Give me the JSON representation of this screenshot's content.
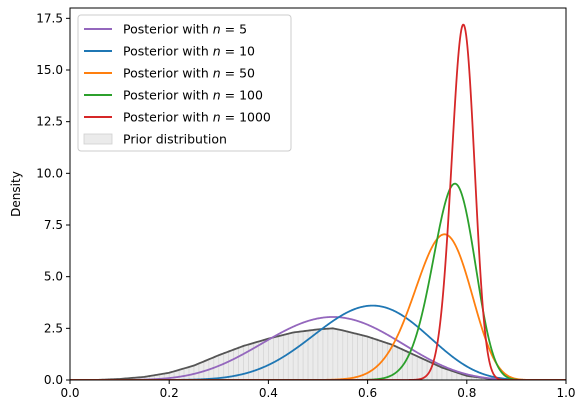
{
  "chart_data": {
    "type": "line",
    "title": "",
    "xlabel": "",
    "ylabel": "Density",
    "xlim": [
      0.0,
      1.0
    ],
    "ylim": [
      0.0,
      18.0
    ],
    "xticks": [
      "0.0",
      "0.2",
      "0.4",
      "0.6",
      "0.8",
      "1.0"
    ],
    "yticks": [
      "0.0",
      "2.5",
      "5.0",
      "7.5",
      "10.0",
      "12.5",
      "15.0",
      "17.5"
    ],
    "grid": false,
    "legend_position": "top-left",
    "series": [
      {
        "name": "Posterior with n = 5",
        "label_text": "Posterior with ",
        "label_n": "n",
        "label_eq": " = 5",
        "color": "#9467bd",
        "peak_x": 0.53,
        "peak_y": 3.05
      },
      {
        "name": "Posterior with n = 10",
        "label_text": "Posterior with ",
        "label_n": "n",
        "label_eq": " = 10",
        "color": "#1f77b4",
        "peak_x": 0.61,
        "peak_y": 3.6
      },
      {
        "name": "Posterior with n = 50",
        "label_text": "Posterior with ",
        "label_n": "n",
        "label_eq": " = 50",
        "color": "#ff7f0e",
        "peak_x": 0.755,
        "peak_y": 7.05
      },
      {
        "name": "Posterior with n = 100",
        "label_text": "Posterior with ",
        "label_n": "n",
        "label_eq": " = 100",
        "color": "#2ca02c",
        "peak_x": 0.776,
        "peak_y": 9.5
      },
      {
        "name": "Posterior with n = 1000",
        "label_text": "Posterior with ",
        "label_n": "n",
        "label_eq": " = 1000",
        "color": "#d62728",
        "peak_x": 0.793,
        "peak_y": 17.2
      }
    ],
    "prior": {
      "name": "Prior distribution",
      "fill_color": "#ebebeb",
      "edge_color": "#555555",
      "bin_width": 0.01,
      "x": [
        0.0,
        0.05,
        0.1,
        0.15,
        0.2,
        0.25,
        0.3,
        0.35,
        0.4,
        0.45,
        0.5,
        0.53,
        0.55,
        0.6,
        0.65,
        0.7,
        0.75,
        0.8,
        0.85,
        0.9,
        0.95,
        1.0
      ],
      "y": [
        0.0,
        0.0,
        0.05,
        0.15,
        0.35,
        0.7,
        1.2,
        1.65,
        2.0,
        2.3,
        2.45,
        2.5,
        2.4,
        2.1,
        1.7,
        1.15,
        0.6,
        0.2,
        0.05,
        0.0,
        0.0,
        0.0
      ]
    }
  }
}
